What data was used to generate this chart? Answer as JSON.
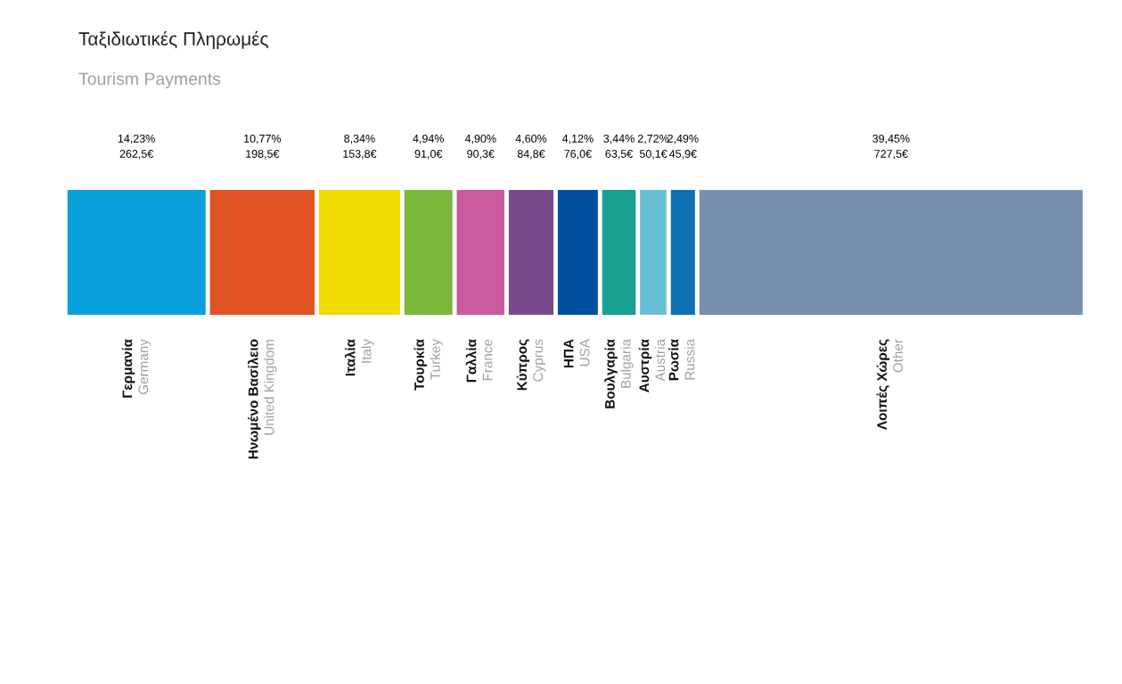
{
  "chart_data": {
    "type": "other",
    "title": "Ταξιδιωτικές Πληρωμές",
    "subtitle": "Tourism Payments",
    "categories": [
      "Γερμανία\nGermany",
      "Ηνωμένο Βασίλειο\nUnited Kingdom",
      "Ιταλία\nItaly",
      "Τουρκία\nTurkey",
      "Γαλλία\nFrance",
      "Κύπρος\nCyprus",
      "ΗΠΑ\nUSA",
      "Βουλγαρία\nBulgaria",
      "Αυστρία\nAustria",
      "Ρωσία\nRussia",
      "Λοιπές Χώρες\nOther"
    ],
    "values": [
      14.23,
      10.77,
      8.34,
      4.94,
      4.9,
      4.6,
      4.12,
      3.44,
      2.72,
      2.49,
      39.45
    ],
    "value_labels": [
      "14,23%\n262,5€",
      "10,77%\n198,5€",
      "8,34%\n153,8€",
      "4,94%\n91,0€",
      "4,90%\n90,3€",
      "4,60%\n84,8€",
      "4,12%\n76,0€",
      "3,44%\n63,5€",
      "2,72%\n50,1€",
      "2,49%\n45,9€",
      "39,45%\n727,5€"
    ],
    "colors": [
      "#0aa0dc",
      "#e05424",
      "#f0dc00",
      "#7cb83a",
      "#c85c9c",
      "#784a8c",
      "#0050a0",
      "#18a090",
      "#68c0d4",
      "#1070b4",
      "#7890b0"
    ]
  }
}
